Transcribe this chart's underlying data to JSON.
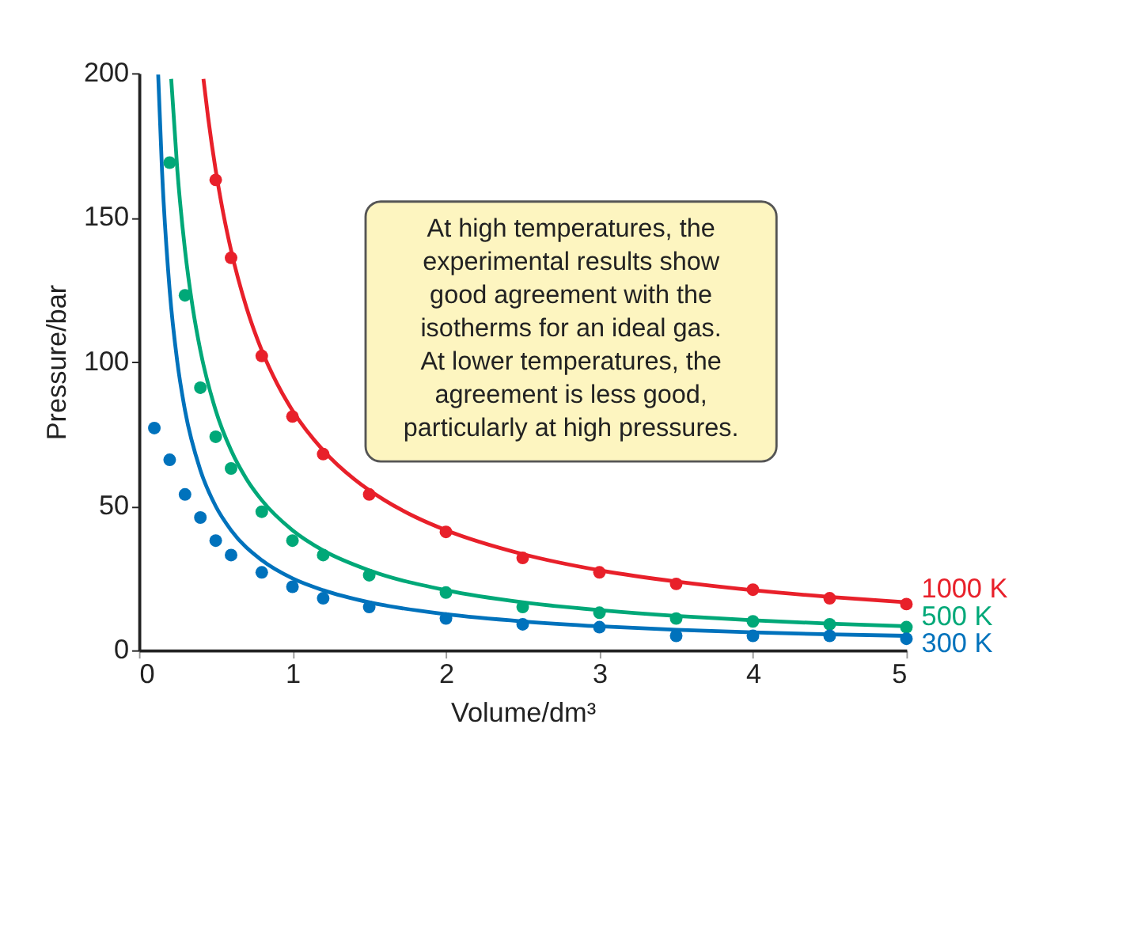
{
  "chart_data": {
    "type": "scatter",
    "xlabel": "Volume/dm³",
    "ylabel": "Pressure/bar",
    "xlim": [
      0,
      5
    ],
    "ylim": [
      0,
      200
    ],
    "xticks": [
      0,
      1,
      2,
      3,
      4,
      5
    ],
    "yticks": [
      0,
      50,
      100,
      150,
      200
    ],
    "grid": false,
    "marker": "circle",
    "annotations": [
      "At high temperatures, the\nexperimental results show\ngood agreement with the\nisotherms for an ideal gas.\nAt lower temperatures, the\nagreement is less good,\nparticularly at high pressures."
    ],
    "series": [
      {
        "type": "line",
        "marker": "none",
        "line_style": "solid",
        "name": "1000 K",
        "color": "#e8202a",
        "x": [
          0.42,
          0.45,
          0.5,
          0.55,
          0.6,
          0.7,
          0.8,
          0.9,
          1,
          1.2,
          1.4,
          1.6,
          1.8,
          2,
          2.5,
          3,
          3.5,
          4,
          4.5,
          5
        ],
        "values": [
          198.0,
          184.8,
          166.3,
          151.2,
          138.6,
          118.8,
          103.9,
          92.4,
          83.1,
          69.3,
          59.4,
          52.0,
          46.2,
          41.6,
          33.3,
          27.7,
          23.8,
          20.8,
          18.5,
          16.6
        ]
      },
      {
        "type": "line",
        "marker": "none",
        "line_style": "solid",
        "name": "500 K",
        "color": "#00a878",
        "x": [
          0.21,
          0.25,
          0.3,
          0.35,
          0.4,
          0.5,
          0.6,
          0.7,
          0.8,
          1,
          1.2,
          1.5,
          2,
          2.5,
          3,
          3.5,
          4,
          4.5,
          5
        ],
        "values": [
          198.0,
          166.3,
          138.6,
          118.8,
          103.9,
          83.1,
          69.3,
          59.4,
          52.0,
          41.6,
          34.6,
          27.7,
          20.8,
          16.6,
          13.9,
          11.9,
          10.4,
          9.2,
          8.3
        ]
      },
      {
        "type": "line",
        "marker": "none",
        "line_style": "solid",
        "name": "300 K",
        "color": "#0072bc",
        "x": [
          0.125,
          0.15,
          0.2,
          0.25,
          0.3,
          0.4,
          0.5,
          0.6,
          0.8,
          1,
          1.2,
          1.5,
          2,
          2.5,
          3,
          3.5,
          4,
          4.5,
          5
        ],
        "values": [
          199.5,
          166.3,
          124.7,
          99.8,
          83.1,
          62.4,
          49.9,
          41.6,
          31.2,
          24.9,
          20.8,
          16.6,
          12.5,
          10.0,
          8.3,
          7.1,
          6.2,
          5.5,
          5.0
        ]
      },
      {
        "color": "#e8202a",
        "x": [
          0.5,
          0.6,
          0.8,
          1,
          1.2,
          1.5,
          2,
          2.5,
          3,
          3.5,
          4,
          4.5,
          5
        ],
        "values": [
          163,
          136,
          102,
          81,
          68,
          54,
          41,
          32,
          27,
          23,
          21,
          18,
          16
        ]
      },
      {
        "color": "#00a878",
        "x": [
          0.2,
          0.3,
          0.4,
          0.5,
          0.6,
          0.8,
          1,
          1.2,
          1.5,
          2,
          2.5,
          3,
          3.5,
          4,
          4.5,
          5
        ],
        "values": [
          169,
          123,
          91,
          74,
          63,
          48,
          38,
          33,
          26,
          20,
          15,
          13,
          11,
          10,
          9,
          8
        ]
      },
      {
        "color": "#0072bc",
        "x": [
          0.1,
          0.2,
          0.3,
          0.4,
          0.5,
          0.6,
          0.8,
          1,
          1.2,
          1.5,
          2,
          2.5,
          3,
          3.5,
          4,
          4.5,
          5
        ],
        "values": [
          77,
          66,
          54,
          46,
          38,
          33,
          27,
          22,
          18,
          15,
          11,
          9,
          8,
          5,
          5,
          5,
          4
        ]
      }
    ]
  }
}
